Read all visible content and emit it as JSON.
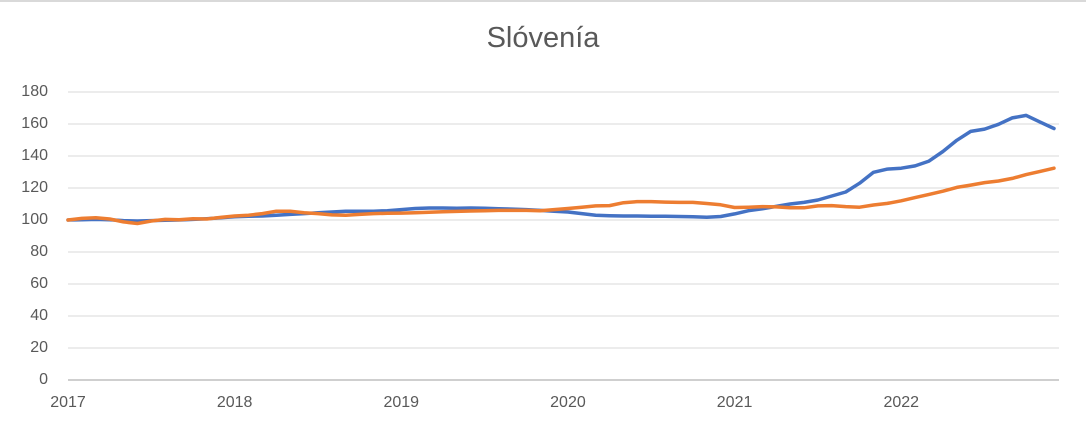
{
  "chart_data": {
    "type": "line",
    "title": "Slóvenía",
    "xlabel": "",
    "ylabel": "",
    "x_unit": "monthly",
    "x_tick_labels": [
      "2017",
      "2018",
      "2019",
      "2020",
      "2021",
      "2022"
    ],
    "months_per_tick": 12,
    "ylim": [
      0,
      180
    ],
    "y_ticks": [
      0,
      20,
      40,
      60,
      80,
      100,
      120,
      140,
      160,
      180
    ],
    "grid": "horizontal",
    "legend": "none",
    "colors": {
      "grid": "#D9D9D9",
      "axis": "#BFBFBF",
      "text": "#595959",
      "border": "#D9D9D9",
      "background": "#FFFFFF"
    },
    "series": [
      {
        "id": "blue",
        "color": "#4472C4",
        "values": [
          100,
          100.2,
          100.4,
          100.2,
          99.6,
          99.4,
          99.6,
          99.8,
          100,
          100.4,
          100.8,
          101.4,
          102,
          102.3,
          102.5,
          103,
          103.5,
          104,
          104.5,
          105,
          105.5,
          105.5,
          105.5,
          105.8,
          106.5,
          107.2,
          107.5,
          107.5,
          107.3,
          107.5,
          107.3,
          107,
          106.8,
          106.5,
          106,
          105.5,
          105,
          104,
          103,
          102.7,
          102.5,
          102.5,
          102.4,
          102.3,
          102.2,
          102,
          101.7,
          102.2,
          103.8,
          105.8,
          107,
          108.5,
          110,
          111,
          112.5,
          115,
          117.5,
          123,
          129.8,
          131.8,
          132.4,
          133.8,
          136.8,
          142.8,
          149.8,
          155.4,
          156.8,
          159.8,
          163.8,
          165.4,
          161.2,
          157.2
        ]
      },
      {
        "id": "orange",
        "color": "#ED7D31",
        "values": [
          100,
          101,
          101.4,
          100.6,
          98.8,
          97.8,
          99.4,
          100.4,
          100.2,
          100.8,
          100.6,
          101.6,
          102.5,
          103,
          104,
          105.5,
          105.5,
          104.5,
          104,
          103.2,
          103,
          103.5,
          104,
          104.2,
          104.3,
          104.5,
          104.8,
          105.2,
          105.4,
          105.6,
          105.8,
          106,
          106,
          106,
          105.8,
          106.5,
          107.2,
          108,
          108.8,
          109,
          110.8,
          111.5,
          111.5,
          111.2,
          111,
          111,
          110.3,
          109.5,
          107.8,
          108,
          108.4,
          108.2,
          107.6,
          107.6,
          108.8,
          109,
          108.4,
          108,
          109.4,
          110.4,
          112,
          114,
          116,
          118,
          120.4,
          121.8,
          123.4,
          124.4,
          126,
          128.4,
          130.4,
          132.4
        ]
      }
    ]
  }
}
